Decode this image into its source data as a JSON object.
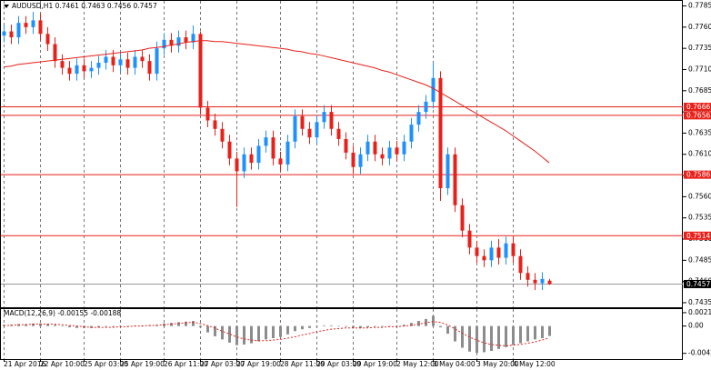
{
  "chart_data": {
    "type": "candlestick",
    "title": "AUDUSD,H1  0.7461 0.7463 0.7456 0.7457",
    "categories": [
      "21 Apr 2016",
      null,
      null,
      null,
      null,
      "22 Apr 10:00",
      null,
      null,
      null,
      null,
      null,
      "25 Apr 03:00",
      null,
      null,
      null,
      null,
      "25 Apr 19:00",
      null,
      null,
      null,
      null,
      null,
      "26 Apr 11:00",
      null,
      null,
      null,
      null,
      "27 Apr 03:00",
      null,
      null,
      null,
      null,
      "27 Apr 19:00",
      null,
      null,
      null,
      null,
      null,
      "28 Apr 11:00",
      null,
      null,
      null,
      null,
      "29 Apr 03:00",
      null,
      null,
      null,
      null,
      "29 Apr 19:00",
      null,
      null,
      null,
      null,
      null,
      "2 May 12:00",
      null,
      null,
      null,
      null,
      "3 May 04:00",
      null,
      null,
      null,
      null,
      null,
      "3 May 20:00",
      null,
      null,
      null,
      null,
      "4 May 12:00",
      null,
      null,
      null,
      null,
      null
    ],
    "open": [
      0.775,
      0.7755,
      0.7748,
      0.7765,
      0.776,
      0.7768,
      0.7752,
      0.774,
      0.772,
      0.7712,
      0.7705,
      0.7715,
      0.7708,
      0.7712,
      0.7718,
      0.7725,
      0.7715,
      0.7722,
      0.7712,
      0.7725,
      0.772,
      0.7705,
      0.7735,
      0.7745,
      0.7738,
      0.7748,
      0.7742,
      0.7752,
      0.7665,
      0.765,
      0.764,
      0.7625,
      0.7605,
      0.759,
      0.761,
      0.76,
      0.762,
      0.763,
      0.7605,
      0.7598,
      0.7625,
      0.7655,
      0.764,
      0.763,
      0.7648,
      0.766,
      0.764,
      0.7628,
      0.7612,
      0.7595,
      0.761,
      0.7625,
      0.761,
      0.7605,
      0.7618,
      0.761,
      0.7625,
      0.7645,
      0.766,
      0.7672,
      0.77,
      0.757,
      0.761,
      0.755,
      0.752,
      0.75,
      0.749,
      0.7485,
      0.75,
      0.7488,
      0.7505,
      0.749,
      0.747,
      0.7462,
      0.7458,
      0.7461
    ],
    "high": [
      0.7763,
      0.7763,
      0.7773,
      0.7773,
      0.7778,
      0.7776,
      0.776,
      0.7748,
      0.7728,
      0.772,
      0.7723,
      0.7723,
      0.772,
      0.7726,
      0.7733,
      0.7733,
      0.773,
      0.773,
      0.7733,
      0.7733,
      0.7728,
      0.7743,
      0.7753,
      0.7753,
      0.7756,
      0.7756,
      0.7762,
      0.7755,
      0.7673,
      0.7658,
      0.7648,
      0.7633,
      0.7613,
      0.7618,
      0.7618,
      0.7628,
      0.7638,
      0.7638,
      0.7613,
      0.7633,
      0.7663,
      0.7663,
      0.7648,
      0.7656,
      0.7668,
      0.7668,
      0.7648,
      0.7636,
      0.762,
      0.7618,
      0.7633,
      0.7633,
      0.7618,
      0.7626,
      0.7626,
      0.7633,
      0.7653,
      0.7668,
      0.768,
      0.7718,
      0.7708,
      0.7618,
      0.7618,
      0.7558,
      0.7528,
      0.7508,
      0.7498,
      0.7508,
      0.751,
      0.7513,
      0.7513,
      0.7498,
      0.7478,
      0.747,
      0.7471,
      0.7463
    ],
    "low": [
      0.7742,
      0.774,
      0.774,
      0.7752,
      0.7752,
      0.7744,
      0.7732,
      0.7712,
      0.7704,
      0.7697,
      0.7697,
      0.77,
      0.77,
      0.7704,
      0.771,
      0.7707,
      0.7707,
      0.7704,
      0.7704,
      0.7712,
      0.7697,
      0.7697,
      0.7727,
      0.773,
      0.773,
      0.7734,
      0.7734,
      0.7657,
      0.7642,
      0.7632,
      0.7617,
      0.7597,
      0.7548,
      0.7582,
      0.7592,
      0.7592,
      0.7612,
      0.7597,
      0.759,
      0.759,
      0.7617,
      0.7632,
      0.7622,
      0.7622,
      0.764,
      0.7632,
      0.762,
      0.7604,
      0.7587,
      0.7587,
      0.7602,
      0.7602,
      0.7597,
      0.7597,
      0.7602,
      0.7602,
      0.7617,
      0.7637,
      0.7652,
      0.7664,
      0.7555,
      0.7562,
      0.7542,
      0.7512,
      0.7492,
      0.7482,
      0.7477,
      0.7477,
      0.748,
      0.748,
      0.7482,
      0.7462,
      0.7454,
      0.745,
      0.745,
      0.7456
    ],
    "close": [
      0.7755,
      0.7748,
      0.7765,
      0.776,
      0.7768,
      0.7752,
      0.774,
      0.772,
      0.7712,
      0.7705,
      0.7715,
      0.7708,
      0.7712,
      0.7718,
      0.7725,
      0.7715,
      0.7722,
      0.7712,
      0.7725,
      0.772,
      0.7705,
      0.7735,
      0.7745,
      0.7738,
      0.7748,
      0.7742,
      0.7752,
      0.7665,
      0.765,
      0.764,
      0.7625,
      0.7605,
      0.759,
      0.761,
      0.76,
      0.762,
      0.763,
      0.7605,
      0.7598,
      0.7625,
      0.7655,
      0.764,
      0.763,
      0.7648,
      0.766,
      0.764,
      0.7628,
      0.7612,
      0.7595,
      0.761,
      0.7625,
      0.761,
      0.7605,
      0.7618,
      0.761,
      0.7625,
      0.7645,
      0.766,
      0.7672,
      0.77,
      0.757,
      0.761,
      0.755,
      0.752,
      0.75,
      0.749,
      0.7485,
      0.75,
      0.7488,
      0.7505,
      0.749,
      0.747,
      0.7462,
      0.7458,
      0.7463,
      0.7457
    ],
    "up_color": "#1e90ff",
    "down_color": "#e8201a",
    "ma": {
      "color": "#e8201a",
      "values": [
        0.7713,
        0.7714,
        0.7716,
        0.7717,
        0.7718,
        0.7719,
        0.772,
        0.7721,
        0.7722,
        0.7723,
        0.7724,
        0.7725,
        0.7726,
        0.7727,
        0.7728,
        0.7729,
        0.773,
        0.7731,
        0.7732,
        0.7733,
        0.7735,
        0.7736,
        0.7737,
        0.7739,
        0.774,
        0.7742,
        0.7743,
        0.7744,
        0.7744,
        0.7743,
        0.7743,
        0.7742,
        0.7741,
        0.774,
        0.7739,
        0.7738,
        0.7737,
        0.7736,
        0.7735,
        0.7734,
        0.7732,
        0.7731,
        0.7729,
        0.7728,
        0.7726,
        0.7724,
        0.7722,
        0.772,
        0.7718,
        0.7716,
        0.7714,
        0.7712,
        0.7709,
        0.7707,
        0.7704,
        0.7701,
        0.7698,
        0.7695,
        0.7692,
        0.7688,
        0.7683,
        0.7678,
        0.7673,
        0.7668,
        0.7663,
        0.7658,
        0.7653,
        0.7648,
        0.7643,
        0.7638,
        0.7632,
        0.7626,
        0.762,
        0.7614,
        0.7607,
        0.76
      ]
    },
    "levels": [
      0.7666,
      0.7656,
      0.7586,
      0.7514
    ],
    "level_color": "#e8201a",
    "last_price": 0.7457,
    "ylim": [
      0.74296,
      0.7792
    ],
    "yticks": [
      0.7785,
      {
        "value": 0.776,
        "label": "0.7760"
      },
      0.7735,
      {
        "value": 0.771,
        "label": "0.7710"
      },
      0.7685,
      {
        "value": 0.766,
        "label": "0.7660"
      },
      0.7635,
      {
        "value": 0.761,
        "label": "0.7610"
      },
      0.7585,
      {
        "value": 0.756,
        "label": "0.7560"
      },
      0.7535,
      {
        "value": 0.751,
        "label": "0.7510"
      },
      0.7485,
      {
        "value": 0.746,
        "label": "0.7460"
      },
      0.7435
    ],
    "macd": {
      "title": "MACD(12,26,9) -0.00155 -0.00188",
      "histogram": [
        0.0002,
        0.0002,
        0.0003,
        0.0003,
        0.0004,
        0.0004,
        0.0003,
        0.0002,
        0.0,
        -0.0002,
        -0.0003,
        -0.0003,
        -0.0003,
        -0.0002,
        -0.0001,
        -0.0001,
        0.0,
        0.0,
        0.0001,
        0.0001,
        0.0001,
        0.0002,
        0.0004,
        0.0005,
        0.0006,
        0.0007,
        0.0008,
        -0.0002,
        -0.001,
        -0.0016,
        -0.0021,
        -0.0026,
        -0.003,
        -0.0029,
        -0.0027,
        -0.0024,
        -0.0021,
        -0.0019,
        -0.0017,
        -0.0013,
        -0.0008,
        -0.0005,
        -0.0003,
        -0.0001,
        0.0001,
        0.0001,
        0.0,
        -0.0001,
        -0.0003,
        -0.0003,
        -0.0002,
        -0.0001,
        -0.0001,
        0.0,
        0.0,
        0.0002,
        0.0005,
        0.0008,
        0.0011,
        0.0016,
        -0.0002,
        -0.0012,
        -0.0024,
        -0.0034,
        -0.004,
        -0.0042,
        -0.0041,
        -0.0039,
        -0.0036,
        -0.0033,
        -0.003,
        -0.0027,
        -0.0024,
        -0.0021,
        -0.0019,
        -0.00155
      ],
      "signal": [
        0.0001,
        0.0001,
        0.0002,
        0.0002,
        0.0003,
        0.0003,
        0.0003,
        0.0003,
        0.0002,
        0.0001,
        0.0,
        -0.0001,
        -0.0002,
        -0.0002,
        -0.0002,
        -0.0002,
        -0.0001,
        -0.0001,
        0.0,
        0.0,
        0.0001,
        0.0001,
        0.0002,
        0.0003,
        0.0004,
        0.0005,
        0.0006,
        0.0004,
        0.0001,
        -0.0003,
        -0.0008,
        -0.0012,
        -0.0017,
        -0.002,
        -0.0022,
        -0.0023,
        -0.0023,
        -0.0022,
        -0.0021,
        -0.0019,
        -0.0017,
        -0.0014,
        -0.0012,
        -0.0009,
        -0.0007,
        -0.0005,
        -0.0004,
        -0.0003,
        -0.0003,
        -0.0003,
        -0.0003,
        -0.0002,
        -0.0002,
        -0.0001,
        -0.0001,
        0.0,
        0.0001,
        0.0003,
        0.0005,
        0.0007,
        0.0006,
        0.0002,
        -0.0004,
        -0.0011,
        -0.0017,
        -0.0022,
        -0.0026,
        -0.0029,
        -0.003,
        -0.0031,
        -0.003,
        -0.0029,
        -0.0027,
        -0.0025,
        -0.0022,
        -0.00188
      ],
      "histogram_color": "#8c8c8c",
      "signal_color": "#e8201a",
      "ylim": [
        -0.00518,
        0.00266
      ],
      "yticks": [
        0.0021,
        {
          "value": 0,
          "label": "0.00"
        },
        -0.00428
      ]
    }
  }
}
